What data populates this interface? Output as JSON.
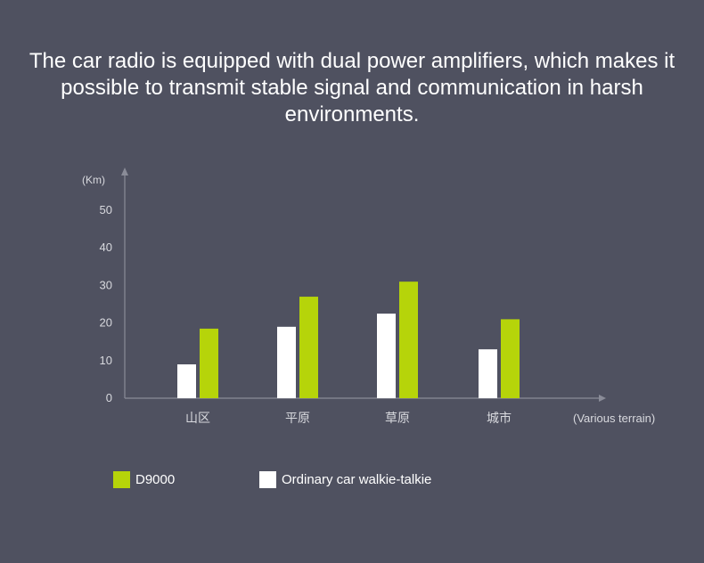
{
  "headline": "The car radio is equipped with dual power amplifiers, which makes it possible to transmit stable signal and communication in harsh environments.",
  "colors": {
    "background": "#4f5160",
    "d9000": "#b6d40a",
    "ordinary": "#ffffff",
    "axis": "#8a8c98",
    "tick_text": "#d8d9de"
  },
  "chart_data": {
    "type": "bar",
    "ylabel": "(Km)",
    "xlabel": "(Various terrain)",
    "categories": [
      "山区",
      "平原",
      "草原",
      "城市"
    ],
    "series": [
      {
        "name": "Ordinary car walkie-talkie",
        "values": [
          9,
          19,
          22.5,
          13
        ]
      },
      {
        "name": "D9000",
        "values": [
          18.5,
          27,
          31,
          21
        ]
      }
    ],
    "yticks": [
      0,
      10,
      20,
      30,
      40,
      50
    ],
    "ylim": [
      0,
      50
    ],
    "grid": false,
    "legend": "bottom-left"
  },
  "legend": {
    "d9000": "D9000",
    "ordinary": "Ordinary car walkie-talkie"
  }
}
